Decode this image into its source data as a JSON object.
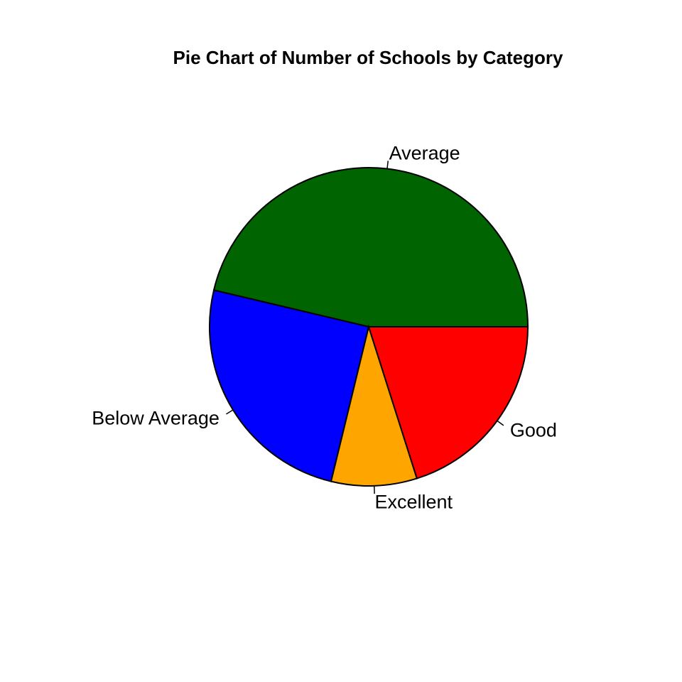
{
  "chart_data": {
    "type": "pie",
    "title": "Pie Chart of Number of Schools by Category",
    "categories": [
      "Average",
      "Below Average",
      "Excellent",
      "Good"
    ],
    "values": [
      46.3,
      24.9,
      8.7,
      20.1
    ],
    "colors": [
      "#006400",
      "#0000FF",
      "#FFA500",
      "#FF0000"
    ],
    "start_angle_deg": 0,
    "direction": "counterclockwise",
    "legend": "none"
  }
}
